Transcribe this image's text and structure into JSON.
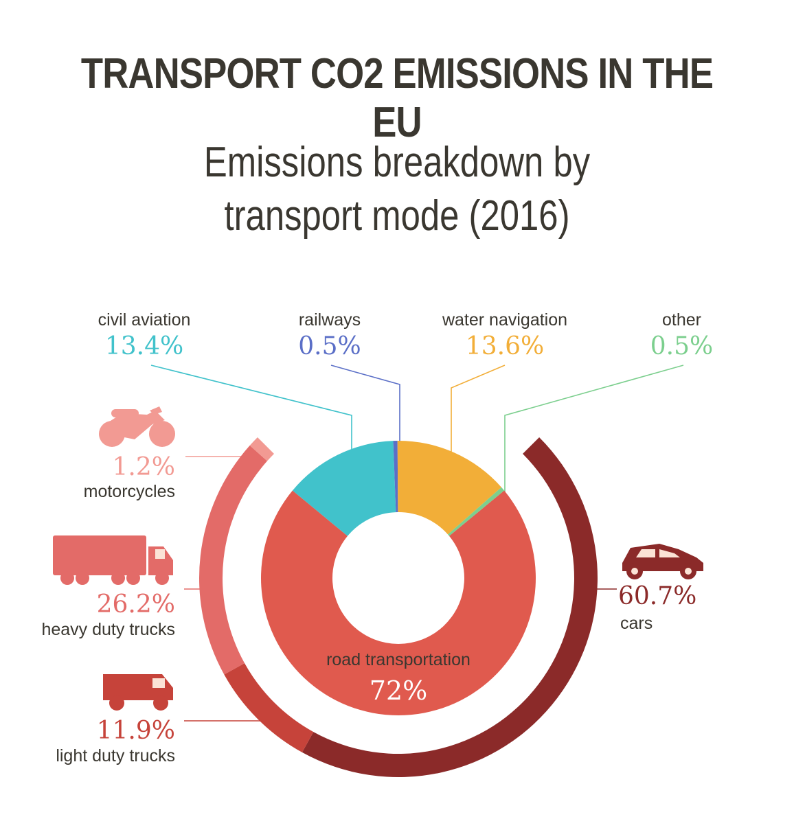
{
  "title": "TRANSPORT CO2 EMISSIONS IN THE EU",
  "subtitle_line1": "Emissions breakdown by",
  "subtitle_line2": "transport mode (2016)",
  "colors": {
    "civil_aviation": "#41c2cb",
    "railways": "#5b6fc7",
    "water_navigation": "#f2ae38",
    "other": "#7ccf8e",
    "road": "#e05a4e",
    "motorcycles": "#f29a93",
    "heavy_trucks": "#e36b68",
    "light_trucks": "#c6433a",
    "cars": "#8b2a29",
    "text": "#3a3730"
  },
  "icons": {
    "motorcycles": "motorcycle-icon",
    "heavy_trucks": "heavy-truck-icon",
    "light_trucks": "van-icon",
    "cars": "car-icon"
  },
  "labels": {
    "civil_aviation": "civil aviation",
    "civil_aviation_pct": "13.4%",
    "railways": "railways",
    "railways_pct": "0.5%",
    "water_navigation": "water navigation",
    "water_navigation_pct": "13.6%",
    "other": "other",
    "other_pct": "0.5%",
    "road": "road transportation",
    "road_pct": "72%",
    "motorcycles": "motorcycles",
    "motorcycles_pct": "1.2%",
    "heavy_trucks": "heavy duty trucks",
    "heavy_trucks_pct": "26.2%",
    "light_trucks": "light duty trucks",
    "light_trucks_pct": "11.9%",
    "cars": "cars",
    "cars_pct": "60.7%"
  },
  "chart_data": [
    {
      "type": "pie",
      "variant": "donut",
      "title": "Emissions breakdown by transport mode (2016)",
      "categories": [
        "civil aviation",
        "railways",
        "water navigation",
        "other",
        "road transportation"
      ],
      "values": [
        13.4,
        0.5,
        13.6,
        0.5,
        72
      ],
      "unit": "%"
    },
    {
      "type": "pie",
      "variant": "outer ring (road transportation breakdown)",
      "categories": [
        "cars",
        "light duty trucks",
        "heavy duty trucks",
        "motorcycles"
      ],
      "values": [
        60.7,
        11.9,
        26.2,
        1.2
      ],
      "unit": "%"
    }
  ]
}
